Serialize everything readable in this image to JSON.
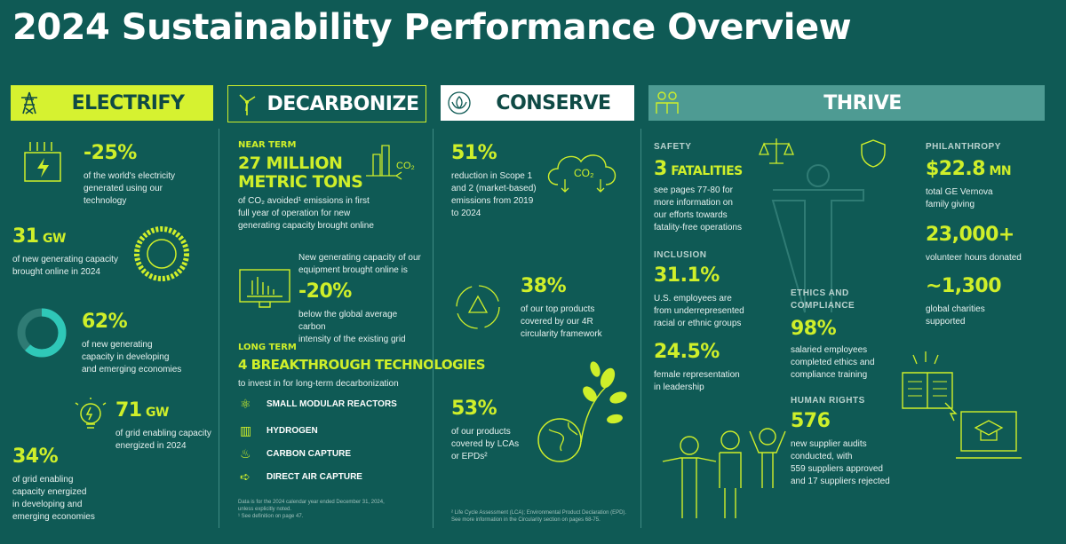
{
  "title": "2024 Sustainability Performance Overview",
  "colors": {
    "bg": "#0f5a55",
    "accent": "#cfef2a",
    "electrify_header": "#d6f230",
    "decarbonize_header": "#0f5a55",
    "conserve_header": "#ffffff",
    "thrive_header": "#4e9b93"
  },
  "electrify": {
    "header": "ELECTRIFY",
    "icon": "power-tower-icon",
    "s1": {
      "value": "-25%",
      "text": [
        "of the world's electricity",
        "generated using our",
        "technology"
      ]
    },
    "s2": {
      "value": "31",
      "unit": "GW",
      "text": [
        "of new generating capacity",
        "brought online in 2024"
      ]
    },
    "s3": {
      "value": "62%",
      "text": [
        "of new generating",
        "capacity in developing",
        "and emerging economies"
      ]
    },
    "s4": {
      "value": "71",
      "unit": "GW",
      "text": [
        "of grid enabling capacity",
        "energized in 2024"
      ]
    },
    "s5": {
      "value": "34%",
      "text": [
        "of grid enabling",
        "capacity energized",
        "in developing and",
        "emerging economies"
      ]
    }
  },
  "decarbonize": {
    "header": "DECARBONIZE",
    "icon": "wind-turbine-icon",
    "near_term": "NEAR TERM",
    "s1": {
      "value_line1": "27 MILLION",
      "value_line2": "METRIC TONS",
      "text": [
        "of CO₂ avoided¹ emissions in first",
        "full year of operation for new",
        "generating capacity brought online"
      ]
    },
    "co2_label": "CO₂",
    "s2": {
      "intro": [
        "New generating capacity of our",
        "equipment brought online is"
      ],
      "value": "-20%",
      "text": [
        "below the global average carbon",
        "intensity of the existing grid"
      ]
    },
    "long_term": "LONG TERM",
    "s3": {
      "value": "4 BREAKTHROUGH TECHNOLOGIES",
      "text": "to invest in for long-term decarbonization"
    },
    "technologies": [
      {
        "icon": "atom-icon",
        "label": "SMALL MODULAR REACTORS"
      },
      {
        "icon": "hydrogen-tank-icon",
        "label": "HYDROGEN"
      },
      {
        "icon": "carbon-capture-icon",
        "label": "CARBON CAPTURE"
      },
      {
        "icon": "air-capture-icon",
        "label": "DIRECT AIR CAPTURE"
      }
    ],
    "footnotes": [
      "Data is for the 2024 calendar year ended December 31, 2024,",
      "unless explicitly noted.",
      "¹ See definition on page 47."
    ]
  },
  "conserve": {
    "header": "CONSERVE",
    "icon": "lotus-icon",
    "s1": {
      "value": "51%",
      "text": [
        "reduction in Scope 1",
        "and 2 (market-based)",
        "emissions from 2019",
        "to 2024"
      ]
    },
    "co2_label": "CO₂",
    "s2": {
      "value": "38%",
      "text": [
        "of our top products",
        "covered by our 4R",
        "circularity framework"
      ]
    },
    "s3": {
      "value": "53%",
      "text": [
        "of our products",
        "covered by LCAs",
        "or EPDs²"
      ]
    },
    "footnotes": [
      "² Life Cycle Assessment (LCA); Environmental Product Declaration (EPD).",
      "See more information in the Circularity section on pages 68-75."
    ]
  },
  "thrive": {
    "header": "THRIVE",
    "icon": "people-icon",
    "safety": {
      "label": "SAFETY",
      "value": "3",
      "unit": "FATALITIES",
      "text": [
        "see pages 77-80 for",
        "more information on",
        "our efforts towards",
        "fatality-free operations"
      ]
    },
    "inclusion": {
      "label": "INCLUSION",
      "v1": "31.1%",
      "t1": [
        "U.S. employees are",
        "from underrepresented",
        "racial or ethnic groups"
      ],
      "v2": "24.5%",
      "t2": [
        "female representation",
        "in leadership"
      ]
    },
    "ethics": {
      "label": [
        "ETHICS AND",
        "COMPLIANCE"
      ],
      "value": "98%",
      "text": [
        "salaried employees",
        "completed ethics and",
        "compliance training"
      ]
    },
    "human_rights": {
      "label": "HUMAN RIGHTS",
      "value": "576",
      "text": [
        "new supplier audits",
        "conducted, with",
        "559 suppliers approved",
        "and 17 suppliers rejected"
      ]
    },
    "philanthropy": {
      "label": "PHILANTHROPY",
      "v1": "$22.8",
      "u1": "MN",
      "t1": [
        "total GE Vernova",
        "family giving"
      ],
      "v2": "23,000+",
      "t2": [
        "volunteer hours donated"
      ],
      "v3": "~1,300",
      "t3": [
        "global charities",
        "supported"
      ]
    }
  }
}
